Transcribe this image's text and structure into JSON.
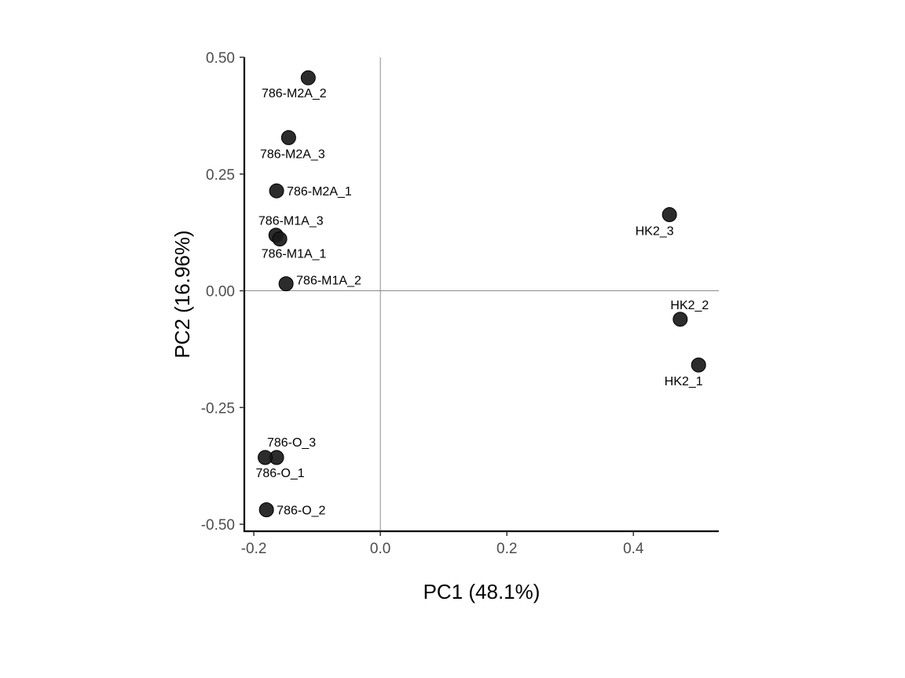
{
  "chart_data": {
    "type": "scatter",
    "title": "",
    "xlabel": "PC1 (48.1%)",
    "ylabel": "PC2 (16.96%)",
    "xlim": [
      -0.215,
      0.535
    ],
    "ylim": [
      -0.515,
      0.5
    ],
    "x_ticks": [
      {
        "value": -0.2,
        "label": "-0.2"
      },
      {
        "value": 0.0,
        "label": "0.0"
      },
      {
        "value": 0.2,
        "label": "0.2"
      },
      {
        "value": 0.4,
        "label": "0.4"
      }
    ],
    "y_ticks": [
      {
        "value": 0.5,
        "label": "0.50"
      },
      {
        "value": 0.25,
        "label": "0.25"
      },
      {
        "value": 0.0,
        "label": "0.00"
      },
      {
        "value": -0.25,
        "label": "-0.25"
      },
      {
        "value": -0.5,
        "label": "-0.50"
      }
    ],
    "reference_lines": {
      "x": 0,
      "y": 0
    },
    "grid": false,
    "legend": "none",
    "point_color": "#1a1a1a",
    "points": [
      {
        "label": "786-M2A_2",
        "x": -0.114,
        "y": 0.456
      },
      {
        "label": "786-M2A_3",
        "x": -0.145,
        "y": 0.328
      },
      {
        "label": "786-M2A_1",
        "x": -0.164,
        "y": 0.214
      },
      {
        "label": "786-M1A_3",
        "x": -0.165,
        "y": 0.119
      },
      {
        "label": "786-M1A_1",
        "x": -0.159,
        "y": 0.111
      },
      {
        "label": "786-M1A_2",
        "x": -0.149,
        "y": 0.015
      },
      {
        "label": "HK2_3",
        "x": 0.457,
        "y": 0.163
      },
      {
        "label": "HK2_2",
        "x": 0.474,
        "y": -0.061
      },
      {
        "label": "HK2_1",
        "x": 0.503,
        "y": -0.159
      },
      {
        "label": "786-O_3",
        "x": -0.164,
        "y": -0.357
      },
      {
        "label": "786-O_1",
        "x": -0.182,
        "y": -0.357
      },
      {
        "label": "786-O_2",
        "x": -0.18,
        "y": -0.469
      }
    ]
  }
}
